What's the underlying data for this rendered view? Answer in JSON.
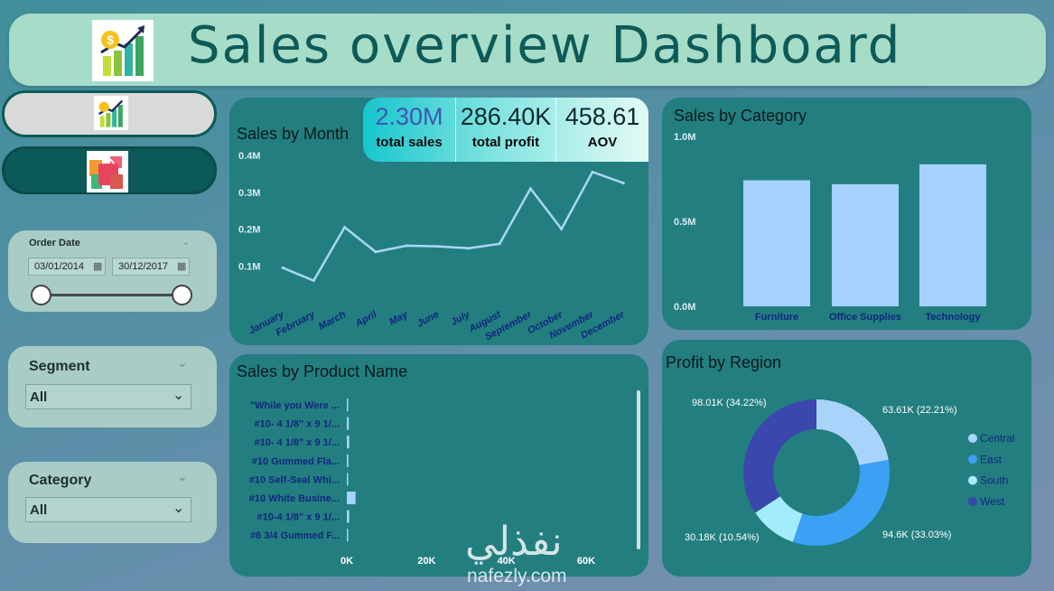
{
  "header": {
    "title": "Sales overview Dashboard",
    "logo_icon": "sales-growth-icon"
  },
  "nav": {
    "items": [
      {
        "icon": "sales-growth-icon"
      },
      {
        "icon": "shopping-bag-icon"
      }
    ]
  },
  "filters": {
    "order_date": {
      "label": "Order Date",
      "start": "03/01/2014",
      "end": "30/12/2017"
    },
    "segment": {
      "label": "Segment",
      "value": "All"
    },
    "category": {
      "label": "Category",
      "value": "All"
    }
  },
  "kpis": [
    {
      "value": "2.30M",
      "label": "total sales",
      "color": "#3d56b2"
    },
    {
      "value": "286.40K",
      "label": "total profit",
      "color": "#0b2a2a"
    },
    {
      "value": "458.61",
      "label": "AOV",
      "color": "#0b2a2a"
    }
  ],
  "colors": {
    "line": "#a9d7f5",
    "bar": "#a7d2ff",
    "central": "#a8d4fb",
    "east": "#3aa1f4",
    "south": "#a3ecfb",
    "west": "#3b47ad"
  },
  "chart_data": [
    {
      "type": "line",
      "title": "Sales by Month",
      "x": [
        "January",
        "February",
        "March",
        "April",
        "May",
        "June",
        "July",
        "August",
        "September",
        "October",
        "November",
        "December"
      ],
      "series": [
        {
          "values": [
            95000,
            60000,
            205000,
            138000,
            155000,
            153000,
            148000,
            160000,
            310000,
            200000,
            355000,
            325000
          ]
        }
      ],
      "yticks": [
        "0.1M",
        "0.2M",
        "0.3M",
        "0.4M"
      ],
      "ylim": [
        0,
        400000
      ]
    },
    {
      "type": "bar",
      "title": "Sales by Category",
      "categories": [
        "Furniture",
        "Office Supplies",
        "Technology"
      ],
      "values": [
        742000,
        719000,
        836000
      ],
      "yticks": [
        "0.0M",
        "0.5M",
        "1.0M"
      ],
      "ylim": [
        0,
        1000000
      ]
    },
    {
      "type": "bar",
      "title": "Sales by Product Name",
      "categories": [
        "\"While you Were ...",
        "#10- 4 1/8\" x 9 1/...",
        "#10- 4 1/8\" x 9 1/...",
        "#10 Gummed Fla...",
        "#10 Self-Seal Whi...",
        "#10 White Busine...",
        "#10-4 1/8\" x 9 1/...",
        "#6 3/4 Gummed F..."
      ],
      "values": [
        300,
        500,
        600,
        400,
        300,
        2200,
        600,
        300
      ],
      "xticks": [
        "0K",
        "20K",
        "40K",
        "60K"
      ],
      "xlim": [
        0,
        60000
      ]
    },
    {
      "type": "pie",
      "title": "Profit by Region",
      "categories": [
        "Central",
        "East",
        "South",
        "West"
      ],
      "values": [
        63.61,
        94.6,
        30.18,
        98.01
      ],
      "labels": [
        "63.61K (22.21%)",
        "94.6K (33.03%)",
        "30.18K (10.54%)",
        "98.01K (34.22%)"
      ]
    }
  ],
  "watermark": {
    "arabic": "نفذلي",
    "latin": "nafezly.com"
  }
}
